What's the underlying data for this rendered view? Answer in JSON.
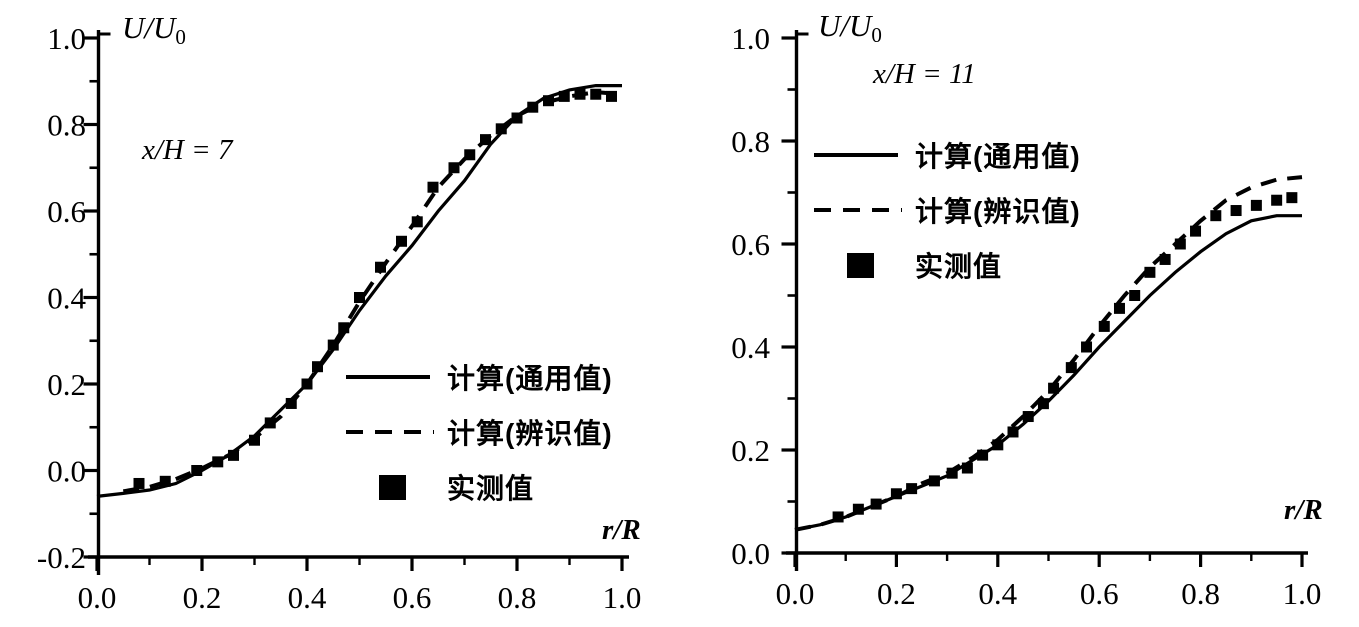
{
  "figure": {
    "background": "#ffffff",
    "ink": "#000000"
  },
  "chart_data": [
    {
      "id": "left-chart",
      "type": "line",
      "title": "",
      "annotation": "x/H = 7",
      "xlabel": "r/R",
      "ylabel": "U/U0",
      "ylabel_main": "U/U",
      "ylabel_sub": "0",
      "xlim": [
        0.0,
        1.0
      ],
      "ylim": [
        -0.2,
        1.0
      ],
      "grid": false,
      "legend_position": "inside lower right",
      "xticks": [
        {
          "v": 0.0,
          "label": "0.0"
        },
        {
          "v": 0.2,
          "label": "0.2"
        },
        {
          "v": 0.4,
          "label": "0.4"
        },
        {
          "v": 0.6,
          "label": "0.6"
        },
        {
          "v": 0.8,
          "label": "0.8"
        },
        {
          "v": 1.0,
          "label": "1.0"
        }
      ],
      "yticks": [
        {
          "v": -0.2,
          "label": "-0.2"
        },
        {
          "v": 0.0,
          "label": "0.0"
        },
        {
          "v": 0.2,
          "label": "0.2"
        },
        {
          "v": 0.4,
          "label": "0.4"
        },
        {
          "v": 0.6,
          "label": "0.6"
        },
        {
          "v": 0.8,
          "label": "0.8"
        },
        {
          "v": 1.0,
          "label": "1.0"
        }
      ],
      "legend": [
        {
          "swatch": "solid-line",
          "label": "计算(通用值)"
        },
        {
          "swatch": "dashed-line",
          "label": "计算(辨识值)"
        },
        {
          "swatch": "square-marker",
          "label": "实测值"
        }
      ],
      "series": [
        {
          "name": "计算(通用值)",
          "style": "solid",
          "points": [
            [
              0,
              -0.06
            ],
            [
              0.05,
              -0.053
            ],
            [
              0.1,
              -0.045
            ],
            [
              0.15,
              -0.03
            ],
            [
              0.2,
              0.0
            ],
            [
              0.25,
              0.035
            ],
            [
              0.3,
              0.08
            ],
            [
              0.35,
              0.14
            ],
            [
              0.4,
              0.2
            ],
            [
              0.45,
              0.28
            ],
            [
              0.5,
              0.37
            ],
            [
              0.55,
              0.45
            ],
            [
              0.6,
              0.52
            ],
            [
              0.65,
              0.6
            ],
            [
              0.7,
              0.67
            ],
            [
              0.75,
              0.755
            ],
            [
              0.8,
              0.82
            ],
            [
              0.85,
              0.86
            ],
            [
              0.9,
              0.88
            ],
            [
              0.95,
              0.89
            ],
            [
              1,
              0.89
            ]
          ]
        },
        {
          "name": "计算(辨识值)",
          "style": "dashed",
          "points": [
            [
              0.05,
              -0.048
            ],
            [
              0.1,
              -0.038
            ],
            [
              0.15,
              -0.02
            ],
            [
              0.2,
              0.005
            ],
            [
              0.25,
              0.035
            ],
            [
              0.3,
              0.075
            ],
            [
              0.35,
              0.125
            ],
            [
              0.4,
              0.2
            ],
            [
              0.45,
              0.29
            ],
            [
              0.5,
              0.39
            ],
            [
              0.55,
              0.48
            ],
            [
              0.6,
              0.565
            ],
            [
              0.65,
              0.655
            ],
            [
              0.7,
              0.72
            ],
            [
              0.75,
              0.775
            ],
            [
              0.8,
              0.82
            ],
            [
              0.85,
              0.85
            ],
            [
              0.9,
              0.865
            ],
            [
              0.95,
              0.875
            ],
            [
              1,
              0.87
            ]
          ]
        },
        {
          "name": "实测值",
          "style": "square-markers",
          "points": [
            [
              0.08,
              -0.03
            ],
            [
              0.13,
              -0.025
            ],
            [
              0.19,
              0.0
            ],
            [
              0.23,
              0.02
            ],
            [
              0.26,
              0.035
            ],
            [
              0.3,
              0.07
            ],
            [
              0.33,
              0.11
            ],
            [
              0.37,
              0.155
            ],
            [
              0.4,
              0.2
            ],
            [
              0.42,
              0.24
            ],
            [
              0.45,
              0.29
            ],
            [
              0.47,
              0.33
            ],
            [
              0.5,
              0.4
            ],
            [
              0.54,
              0.47
            ],
            [
              0.58,
              0.53
            ],
            [
              0.61,
              0.575
            ],
            [
              0.64,
              0.655
            ],
            [
              0.68,
              0.7
            ],
            [
              0.71,
              0.73
            ],
            [
              0.74,
              0.765
            ],
            [
              0.77,
              0.79
            ],
            [
              0.8,
              0.815
            ],
            [
              0.83,
              0.84
            ],
            [
              0.86,
              0.855
            ],
            [
              0.89,
              0.865
            ],
            [
              0.92,
              0.87
            ],
            [
              0.95,
              0.87
            ],
            [
              0.98,
              0.865
            ]
          ]
        }
      ]
    },
    {
      "id": "right-chart",
      "type": "line",
      "title": "",
      "annotation": "x/H = 11",
      "xlabel": "r/R",
      "ylabel": "U/U0",
      "ylabel_main": "U/U",
      "ylabel_sub": "0",
      "xlim": [
        0.0,
        1.0
      ],
      "ylim": [
        0.0,
        1.0
      ],
      "grid": false,
      "legend_position": "inside upper right",
      "xticks": [
        {
          "v": 0.0,
          "label": "0.0"
        },
        {
          "v": 0.2,
          "label": "0.2"
        },
        {
          "v": 0.4,
          "label": "0.4"
        },
        {
          "v": 0.6,
          "label": "0.6"
        },
        {
          "v": 0.8,
          "label": "0.8"
        },
        {
          "v": 1.0,
          "label": "1.0"
        }
      ],
      "yticks": [
        {
          "v": 0.0,
          "label": "0.0"
        },
        {
          "v": 0.2,
          "label": "0.2"
        },
        {
          "v": 0.4,
          "label": "0.4"
        },
        {
          "v": 0.6,
          "label": "0.6"
        },
        {
          "v": 0.8,
          "label": "0.8"
        },
        {
          "v": 1.0,
          "label": "1.0"
        }
      ],
      "legend": [
        {
          "swatch": "solid-line",
          "label": "计算(通用值)"
        },
        {
          "swatch": "dashed-line",
          "label": "计算(辨识值)"
        },
        {
          "swatch": "square-marker",
          "label": "实测值"
        }
      ],
      "series": [
        {
          "name": "计算(通用值)",
          "style": "solid",
          "points": [
            [
              0,
              0.045
            ],
            [
              0.05,
              0.055
            ],
            [
              0.1,
              0.07
            ],
            [
              0.15,
              0.09
            ],
            [
              0.2,
              0.11
            ],
            [
              0.25,
              0.13
            ],
            [
              0.3,
              0.15
            ],
            [
              0.35,
              0.18
            ],
            [
              0.4,
              0.21
            ],
            [
              0.45,
              0.25
            ],
            [
              0.5,
              0.295
            ],
            [
              0.55,
              0.345
            ],
            [
              0.6,
              0.4
            ],
            [
              0.65,
              0.45
            ],
            [
              0.7,
              0.5
            ],
            [
              0.75,
              0.545
            ],
            [
              0.8,
              0.585
            ],
            [
              0.85,
              0.62
            ],
            [
              0.9,
              0.645
            ],
            [
              0.95,
              0.655
            ],
            [
              1,
              0.655
            ]
          ]
        },
        {
          "name": "计算(辨识值)",
          "style": "dashed",
          "points": [
            [
              0,
              0.045
            ],
            [
              0.05,
              0.055
            ],
            [
              0.1,
              0.07
            ],
            [
              0.15,
              0.09
            ],
            [
              0.2,
              0.11
            ],
            [
              0.25,
              0.135
            ],
            [
              0.3,
              0.155
            ],
            [
              0.35,
              0.185
            ],
            [
              0.4,
              0.22
            ],
            [
              0.45,
              0.265
            ],
            [
              0.5,
              0.315
            ],
            [
              0.55,
              0.375
            ],
            [
              0.6,
              0.44
            ],
            [
              0.65,
              0.5
            ],
            [
              0.7,
              0.555
            ],
            [
              0.75,
              0.6
            ],
            [
              0.8,
              0.645
            ],
            [
              0.85,
              0.685
            ],
            [
              0.9,
              0.71
            ],
            [
              0.95,
              0.725
            ],
            [
              1,
              0.73
            ]
          ]
        },
        {
          "name": "实测值",
          "style": "square-markers",
          "points": [
            [
              0.085,
              0.07
            ],
            [
              0.125,
              0.085
            ],
            [
              0.16,
              0.095
            ],
            [
              0.2,
              0.115
            ],
            [
              0.23,
              0.125
            ],
            [
              0.275,
              0.14
            ],
            [
              0.31,
              0.155
            ],
            [
              0.34,
              0.165
            ],
            [
              0.37,
              0.19
            ],
            [
              0.4,
              0.21
            ],
            [
              0.43,
              0.235
            ],
            [
              0.46,
              0.265
            ],
            [
              0.49,
              0.29
            ],
            [
              0.51,
              0.32
            ],
            [
              0.545,
              0.36
            ],
            [
              0.575,
              0.4
            ],
            [
              0.61,
              0.44
            ],
            [
              0.64,
              0.475
            ],
            [
              0.67,
              0.5
            ],
            [
              0.7,
              0.545
            ],
            [
              0.73,
              0.57
            ],
            [
              0.76,
              0.6
            ],
            [
              0.79,
              0.625
            ],
            [
              0.83,
              0.655
            ],
            [
              0.87,
              0.665
            ],
            [
              0.91,
              0.675
            ],
            [
              0.95,
              0.685
            ],
            [
              0.98,
              0.69
            ]
          ]
        }
      ]
    }
  ]
}
